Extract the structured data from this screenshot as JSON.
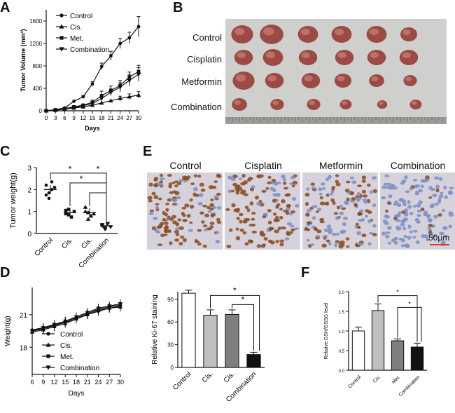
{
  "panel_letters": {
    "a": "A",
    "b": "B",
    "c": "C",
    "d": "D",
    "e": "E",
    "f": "F"
  },
  "groups": [
    "Control",
    "Cisplatin",
    "Metformin",
    "Combination"
  ],
  "scale_bar": "50μm",
  "colors": {
    "nucleus_brown": "#8b4a1c",
    "nucleus_blue": "#7a8fc4",
    "scale_bar": "#e0342f",
    "black": "#111111",
    "light_gray": "#bfbfbf",
    "dark_gray": "#7f7f7f"
  },
  "chart_data": [
    {
      "id": "A",
      "type": "line",
      "title": "",
      "xlabel": "Days",
      "ylabel": "Tumor Volume (mm³)",
      "x": [
        0,
        3,
        6,
        9,
        12,
        15,
        18,
        21,
        24,
        27,
        30
      ],
      "xlim": [
        0,
        30
      ],
      "ylim": [
        0,
        1800
      ],
      "yticks": [
        0,
        400,
        800,
        1200,
        1600
      ],
      "series": [
        {
          "name": "Control",
          "marker": "circle",
          "values": [
            0,
            20,
            50,
            170,
            250,
            480,
            790,
            980,
            1200,
            1300,
            1500
          ]
        },
        {
          "name": "Cis.",
          "marker": "triangle-up",
          "values": [
            0,
            10,
            30,
            50,
            70,
            100,
            140,
            180,
            220,
            250,
            280
          ]
        },
        {
          "name": "Met.",
          "marker": "square",
          "values": [
            0,
            15,
            40,
            70,
            100,
            150,
            270,
            360,
            450,
            600,
            700
          ]
        },
        {
          "name": "Combination",
          "marker": "triangle-down",
          "values": [
            0,
            10,
            35,
            60,
            90,
            130,
            220,
            330,
            420,
            540,
            650
          ]
        }
      ]
    },
    {
      "id": "C",
      "type": "scatter",
      "ylabel": "Tumor weight(g)",
      "categories": [
        "Control",
        "Cis.",
        "Cis.",
        "Combination"
      ],
      "ylim": [
        0,
        3
      ],
      "yticks": [
        0,
        1,
        2,
        3
      ],
      "means": [
        2.0,
        0.95,
        0.95,
        0.35
      ],
      "points": [
        [
          2.2,
          1.85,
          2.0,
          2.1,
          1.75,
          1.6,
          2.35
        ],
        [
          1.05,
          0.85,
          0.75,
          1.0,
          0.9,
          1.1
        ],
        [
          1.2,
          0.95,
          0.8,
          0.9,
          1.0,
          0.65
        ],
        [
          0.4,
          0.25,
          0.45,
          0.3,
          0.35,
          0.2
        ]
      ],
      "significance": [
        "*",
        "*",
        "*"
      ]
    },
    {
      "id": "D",
      "type": "line",
      "xlabel": "Days",
      "ylabel": "Weight(g)",
      "x": [
        6,
        9,
        12,
        15,
        18,
        21,
        24,
        27,
        30
      ],
      "xlim": [
        6,
        30
      ],
      "ylim": [
        15.5,
        23.5
      ],
      "yticks": [
        18,
        21
      ],
      "series": [
        {
          "name": "Control",
          "marker": "circle",
          "values": [
            19.6,
            19.8,
            20.0,
            20.3,
            20.6,
            21.0,
            21.3,
            21.6,
            21.8
          ]
        },
        {
          "name": "Cis.",
          "marker": "triangle-up",
          "values": [
            19.4,
            19.6,
            19.9,
            20.2,
            20.6,
            21.0,
            21.4,
            21.6,
            21.7
          ]
        },
        {
          "name": "Met.",
          "marker": "square",
          "values": [
            19.5,
            19.7,
            20.0,
            20.4,
            20.7,
            21.1,
            21.5,
            21.7,
            21.9
          ]
        },
        {
          "name": "Combination",
          "marker": "triangle-down",
          "values": [
            19.5,
            19.8,
            20.1,
            20.4,
            20.8,
            21.2,
            21.6,
            21.8,
            22.0
          ]
        }
      ]
    },
    {
      "id": "Ki67",
      "type": "bar",
      "ylabel": "Relative Ki-67 staining",
      "categories": [
        "Control",
        "Cis.",
        "Cis.",
        "Combination"
      ],
      "values": [
        98,
        69,
        70,
        17
      ],
      "errors": [
        4,
        7,
        6,
        3
      ],
      "colors": [
        "#ffffff",
        "#bfbfbf",
        "#7f7f7f",
        "#111111"
      ],
      "ylim": [
        0,
        100
      ],
      "yticks": [
        0,
        30,
        60,
        90
      ],
      "significance": [
        "*",
        "*"
      ]
    },
    {
      "id": "F",
      "type": "bar",
      "ylabel": "Relative GSH/GSSG level",
      "categories": [
        "Control",
        "Cis.",
        "Met.",
        "Combination"
      ],
      "values": [
        1.0,
        1.52,
        0.75,
        0.59
      ],
      "errors": [
        0.1,
        0.17,
        0.05,
        0.1
      ],
      "colors": [
        "#ffffff",
        "#bfbfbf",
        "#7f7f7f",
        "#111111"
      ],
      "ylim": [
        0,
        2.0
      ],
      "yticks": [
        "0.0",
        "0.5",
        "1.0",
        "1.5",
        "2.0"
      ],
      "significance": [
        "*",
        "*"
      ]
    }
  ]
}
